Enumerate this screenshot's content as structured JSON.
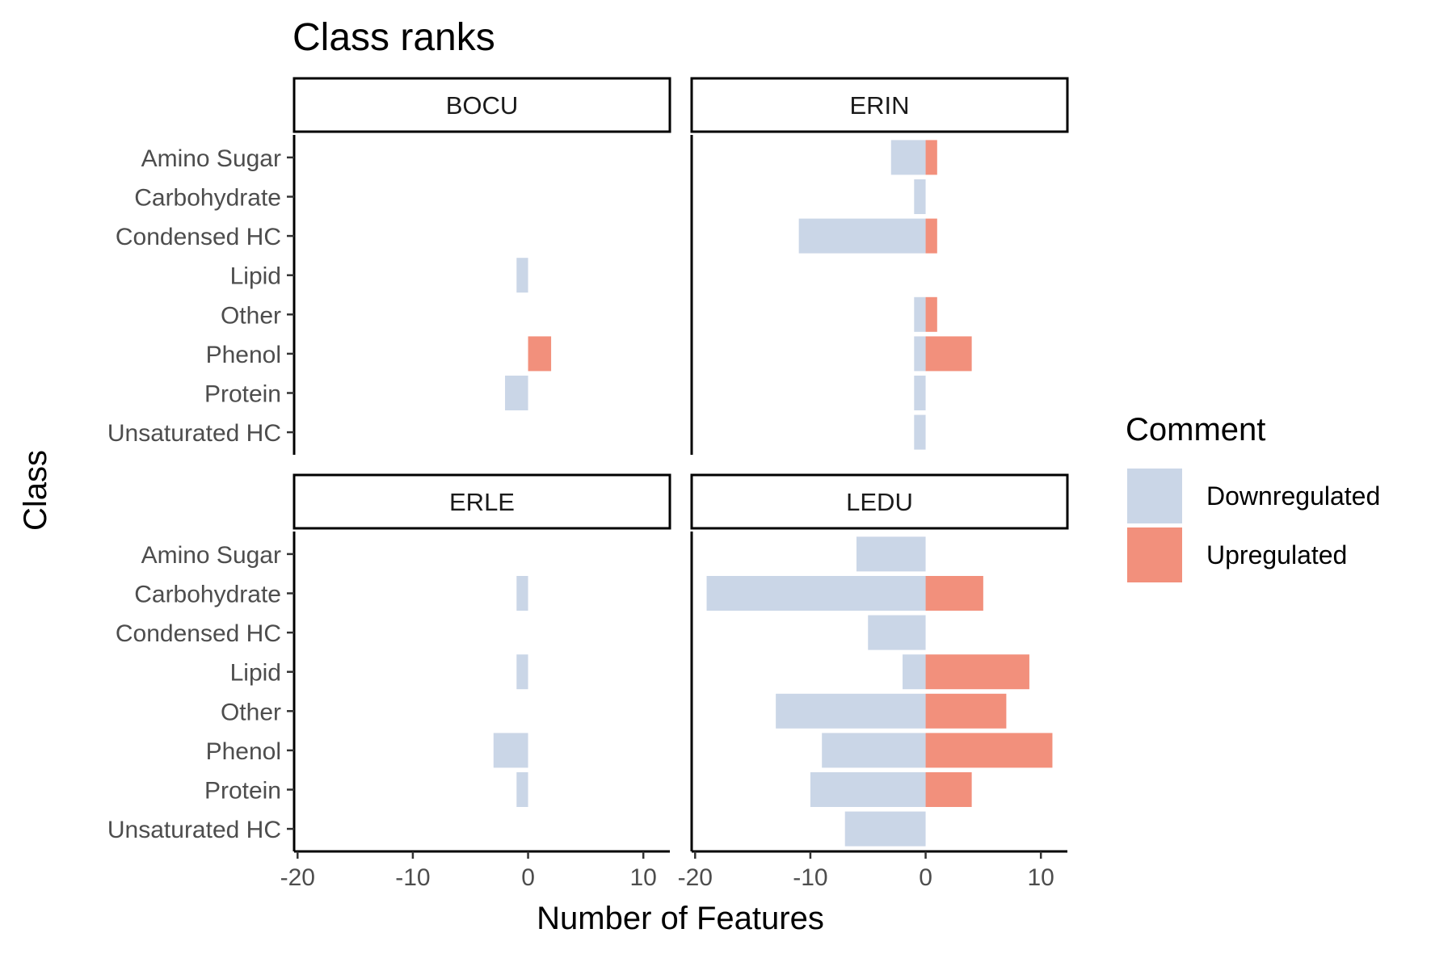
{
  "chart_data": {
    "type": "bar",
    "orientation": "horizontal",
    "title": "Class ranks",
    "xlabel": "Number of Features",
    "ylabel": "Class",
    "xlim": [
      -20.3,
      12.3
    ],
    "xticks": [
      -20,
      -10,
      0,
      10
    ],
    "xtick_labels": [
      "-20",
      "-10",
      "0",
      "10"
    ],
    "categories": [
      "Unsaturated HC",
      "Protein",
      "Phenol",
      "Other",
      "Lipid",
      "Condensed HC",
      "Carbohydrate",
      "Amino Sugar"
    ],
    "legend": {
      "title": "Comment",
      "position": "right",
      "items": [
        {
          "label": "Downregulated",
          "color": "#cad6e7"
        },
        {
          "label": "Upregulated",
          "color": "#f2907c"
        }
      ]
    },
    "grid": false,
    "panels": [
      {
        "name": "BOCU",
        "series": [
          {
            "name": "Downregulated",
            "values": [
              0,
              -2,
              0,
              0,
              -1,
              0,
              0,
              0
            ]
          },
          {
            "name": "Upregulated",
            "values": [
              0,
              0,
              2,
              0,
              0,
              0,
              0,
              0
            ]
          }
        ]
      },
      {
        "name": "ERIN",
        "series": [
          {
            "name": "Downregulated",
            "values": [
              -1,
              -1,
              -1,
              -1,
              0,
              -11,
              -1,
              -3
            ]
          },
          {
            "name": "Upregulated",
            "values": [
              0,
              0,
              4,
              1,
              0,
              1,
              0,
              1
            ]
          }
        ]
      },
      {
        "name": "ERLE",
        "series": [
          {
            "name": "Downregulated",
            "values": [
              0,
              -1,
              -3,
              0,
              -1,
              0,
              -1,
              0
            ]
          },
          {
            "name": "Upregulated",
            "values": [
              0,
              0,
              0,
              0,
              0,
              0,
              0,
              0
            ]
          }
        ]
      },
      {
        "name": "LEDU",
        "series": [
          {
            "name": "Downregulated",
            "values": [
              -7,
              -10,
              -9,
              -13,
              -2,
              -5,
              -19,
              -6
            ]
          },
          {
            "name": "Upregulated",
            "values": [
              0,
              4,
              11,
              7,
              9,
              0,
              5,
              0
            ]
          }
        ]
      }
    ]
  }
}
